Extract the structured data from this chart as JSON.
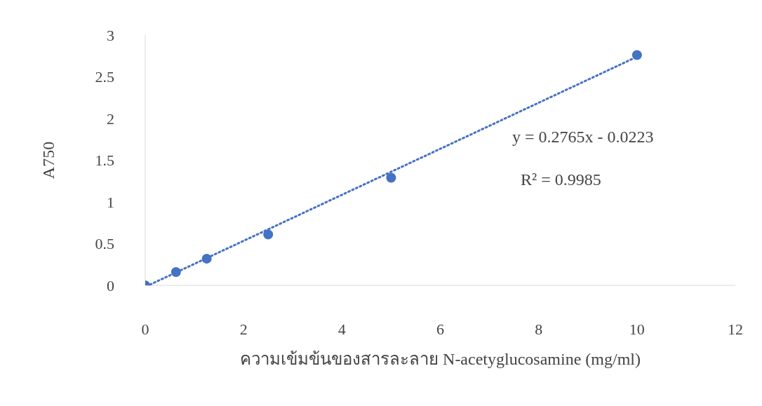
{
  "chart_data": {
    "type": "scatter",
    "xlabel": "ความเข้มข้นของสารละลาย N-acetyglucosamine (mg/ml)",
    "ylabel": "A750",
    "series": [
      {
        "color": "#4472c4",
        "x": [
          0,
          0.625,
          1.25,
          2.5,
          5,
          10
        ],
        "values": [
          0,
          0.16,
          0.32,
          0.61,
          1.29,
          2.76
        ],
        "marker": "circle"
      },
      {
        "type": "line",
        "color": "#4472c4",
        "x": [
          0.1,
          10
        ],
        "values": [
          0.01,
          2.74
        ],
        "line_style": "dotted",
        "marker": "none"
      }
    ],
    "annotations": [
      "y = 0.2765x - 0.0223",
      "R² = 0.9985"
    ],
    "xlim": [
      0,
      12
    ],
    "xticks": [
      0,
      2,
      4,
      6,
      8,
      10,
      12
    ],
    "ylim": [
      0,
      3
    ],
    "yticks": [
      0,
      0.5,
      1,
      1.5,
      2,
      2.5,
      3
    ]
  }
}
